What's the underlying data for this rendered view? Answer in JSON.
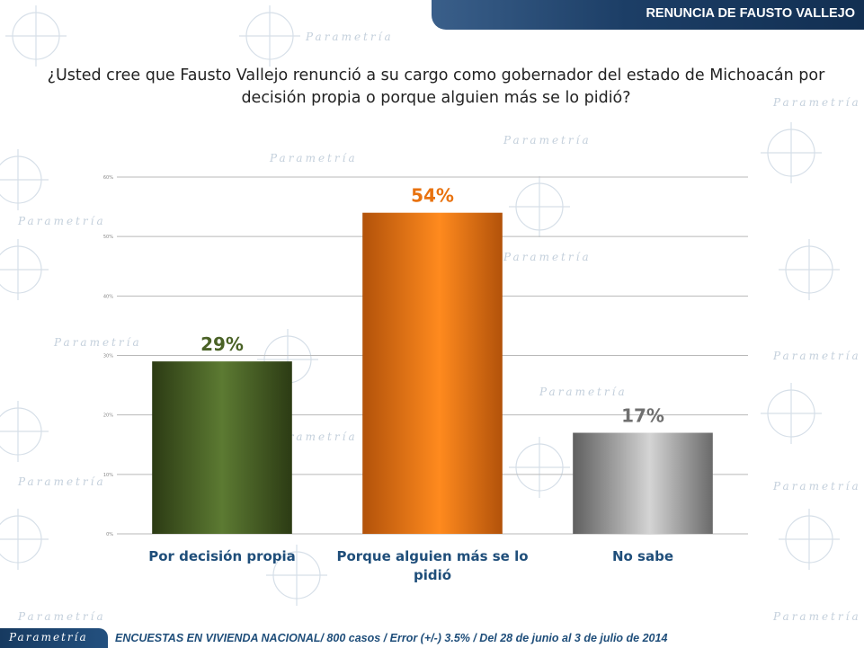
{
  "header": {
    "title": "RENUNCIA DE FAUSTO VALLEJO"
  },
  "question": "¿Usted cree que Fausto Vallejo renunció a su cargo como gobernador del estado de Michoacán por decisión propia o porque alguien más se lo pidió?",
  "footer": {
    "logo": "Parametría",
    "text": "ENCUESTAS EN VIVIENDA NACIONAL/ 800 casos / Error (+/-) 3.5% / Del 28 de junio al 3 de julio de 2014"
  },
  "watermark_text": "Parametría",
  "chart_data": {
    "type": "bar",
    "categories": [
      "Por decisión propia",
      "Porque alguien más se lo pidió",
      "No sabe"
    ],
    "category_lines": [
      [
        "Por decisión propia"
      ],
      [
        "Porque alguien más se lo",
        "pidió"
      ],
      [
        "No sabe"
      ]
    ],
    "values": [
      29,
      54,
      17
    ],
    "data_labels": [
      "29%",
      "54%",
      "17%"
    ],
    "colors": [
      "#4a6226",
      "#f27a12",
      "#9a9a9a"
    ],
    "label_colors": [
      "#4a6226",
      "#e8720f",
      "#6f6f6f"
    ],
    "ylim": [
      0,
      60
    ],
    "yticks": [
      0,
      10,
      20,
      30,
      40,
      50,
      60
    ],
    "ytick_labels": [
      "0%",
      "10%",
      "20%",
      "30%",
      "40%",
      "50%",
      "60%"
    ],
    "grid": true,
    "title": "",
    "xlabel": "",
    "ylabel": ""
  }
}
